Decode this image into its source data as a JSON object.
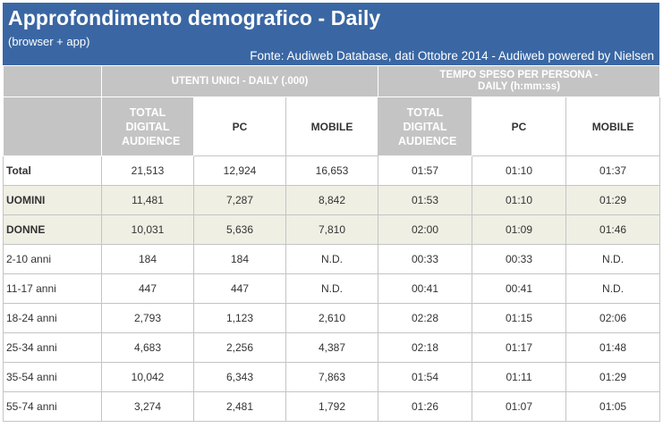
{
  "header": {
    "title": "Approfondimento demografico - Daily",
    "subtitle": "(browser + app)",
    "source": "Fonte: Audiweb Database, dati Ottobre 2014 - Audiweb powered by Nielsen"
  },
  "colors": {
    "header_bg": "#3a67a3",
    "header_text": "#ffffff",
    "group_header_bg": "#c4c4c4",
    "shaded_row_bg": "#efefe4"
  },
  "chart_data": {
    "type": "table",
    "title": "Approfondimento demografico - Daily",
    "subtitle": "(browser + app)",
    "groups": [
      {
        "label": "UTENTI UNICI - DAILY (.000)",
        "span": 3
      },
      {
        "label": "TEMPO SPESO PER PERSONA - DAILY (h:mm:ss)",
        "span": 3
      }
    ],
    "columns": [
      "TOTAL DIGITAL AUDIENCE",
      "PC",
      "MOBILE",
      "TOTAL DIGITAL AUDIENCE",
      "PC",
      "MOBILE"
    ],
    "rows": [
      {
        "label": "Total",
        "values": [
          "21,513",
          "12,924",
          "16,653",
          "01:57",
          "01:10",
          "01:37"
        ]
      },
      {
        "label": "UOMINI",
        "values": [
          "11,481",
          "7,287",
          "8,842",
          "01:53",
          "01:10",
          "01:29"
        ]
      },
      {
        "label": "DONNE",
        "values": [
          "10,031",
          "5,636",
          "7,810",
          "02:00",
          "01:09",
          "01:46"
        ]
      },
      {
        "label": "2-10 anni",
        "values": [
          "184",
          "184",
          "N.D.",
          "00:33",
          "00:33",
          "N.D."
        ]
      },
      {
        "label": "11-17 anni",
        "values": [
          "447",
          "447",
          "N.D.",
          "00:41",
          "00:41",
          "N.D."
        ]
      },
      {
        "label": "18-24 anni",
        "values": [
          "2,793",
          "1,123",
          "2,610",
          "02:28",
          "01:15",
          "02:06"
        ]
      },
      {
        "label": "25-34 anni",
        "values": [
          "4,683",
          "2,256",
          "4,387",
          "02:18",
          "01:17",
          "01:48"
        ]
      },
      {
        "label": "35-54 anni",
        "values": [
          "10,042",
          "6,343",
          "7,863",
          "01:54",
          "01:11",
          "01:29"
        ]
      },
      {
        "label": "55-74 anni",
        "values": [
          "3,274",
          "2,481",
          "1,792",
          "01:26",
          "01:07",
          "01:05"
        ]
      }
    ]
  }
}
